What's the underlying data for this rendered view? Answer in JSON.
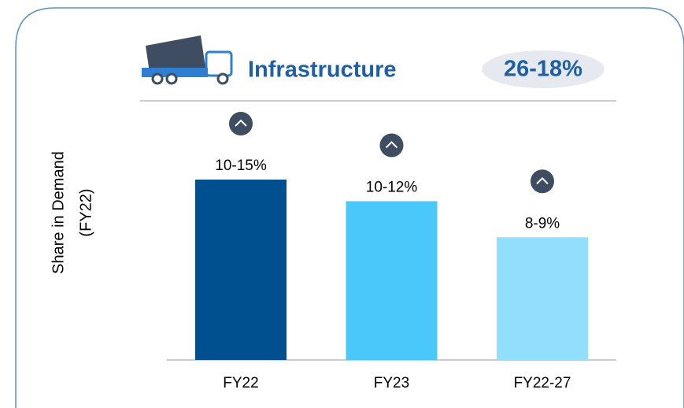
{
  "chart_data": {
    "type": "bar",
    "title": "Infrastructure",
    "badge": "26-18%",
    "y_label": [
      "Share in Demand",
      "(FY22)"
    ],
    "categories": [
      "FY22",
      "FY23",
      "FY22-27"
    ],
    "values": [
      12.5,
      11,
      8.5
    ],
    "value_labels": [
      "10-15%",
      "10-12%",
      "8-9%"
    ],
    "colors": [
      "#00508f",
      "#49c8f9",
      "#92dffd"
    ]
  }
}
